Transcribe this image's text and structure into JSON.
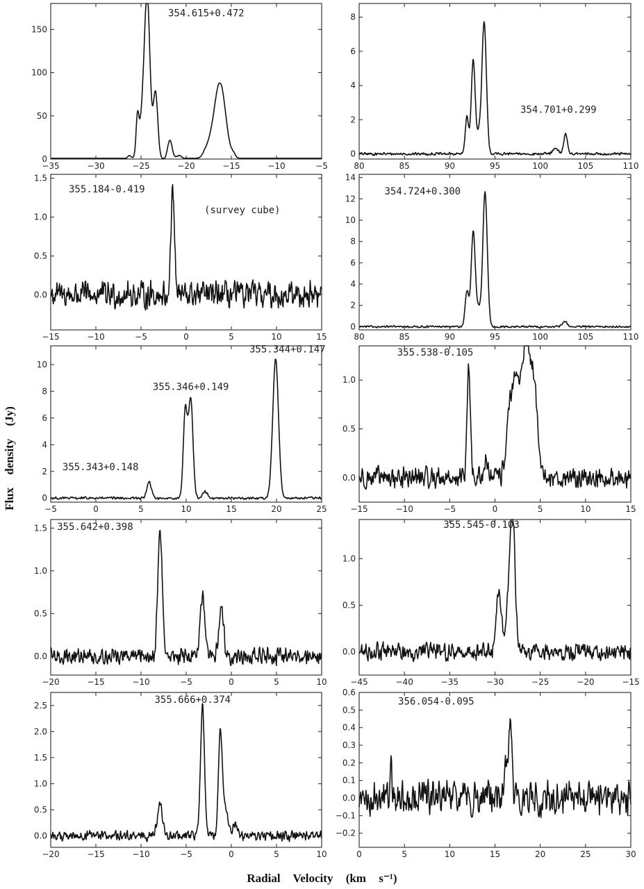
{
  "figure": {
    "xlabel": "Radial    Velocity    (km s⁻¹)",
    "ylabel": "Flux    density    (Jy)"
  },
  "chart_data": [
    {
      "type": "line",
      "xlim": [
        -35,
        -5
      ],
      "ylim": [
        0,
        180
      ],
      "xticks": [
        -35,
        -30,
        -25,
        -20,
        -15,
        -10,
        -5
      ],
      "yticks": [
        0,
        50,
        100,
        150
      ],
      "annotations": [
        {
          "text": "354.615+0.472",
          "x": -22,
          "y": 165
        }
      ],
      "peaks": [
        {
          "x": -26.3,
          "y": 4,
          "w": 0.2
        },
        {
          "x": -25.4,
          "y": 38,
          "w": 0.15
        },
        {
          "x": -24.8,
          "y": 50,
          "w": 0.4
        },
        {
          "x": -24.3,
          "y": 168,
          "w": 0.3
        },
        {
          "x": -23.4,
          "y": 77,
          "w": 0.25
        },
        {
          "x": -21.8,
          "y": 22,
          "w": 0.25
        },
        {
          "x": -20.8,
          "y": 4,
          "w": 0.3
        },
        {
          "x": -17.6,
          "y": 12,
          "w": 0.5
        },
        {
          "x": -16.5,
          "y": 63,
          "w": 0.55
        },
        {
          "x": -15.9,
          "y": 40,
          "w": 0.5
        },
        {
          "x": -14.8,
          "y": 5,
          "w": 0.3
        }
      ],
      "noise": 0.4
    },
    {
      "type": "line",
      "xlim": [
        80,
        110
      ],
      "ylim": [
        -0.3,
        8.8
      ],
      "xticks": [
        80,
        85,
        90,
        95,
        100,
        105,
        110
      ],
      "yticks": [
        0,
        2,
        4,
        6,
        8
      ],
      "annotations": [
        {
          "text": "354.701+0.299",
          "x": 97.8,
          "y": 2.4
        }
      ],
      "peaks": [
        {
          "x": 91.9,
          "y": 2.2,
          "w": 0.18
        },
        {
          "x": 92.6,
          "y": 5.5,
          "w": 0.22
        },
        {
          "x": 93.2,
          "y": 1.0,
          "w": 0.2
        },
        {
          "x": 93.8,
          "y": 7.7,
          "w": 0.25
        },
        {
          "x": 101.7,
          "y": 0.3,
          "w": 0.3
        },
        {
          "x": 102.8,
          "y": 1.2,
          "w": 0.2
        }
      ],
      "noise": 0.06
    },
    {
      "type": "line",
      "xlim": [
        -15,
        15
      ],
      "ylim": [
        -0.45,
        1.55
      ],
      "xticks": [
        -15,
        -10,
        -5,
        0,
        5,
        10,
        15
      ],
      "yticks": [
        0.0,
        0.5,
        1.0,
        1.5
      ],
      "annotations": [
        {
          "text": "355.184-0.419",
          "x": -13,
          "y": 1.32
        },
        {
          "text": "(survey cube)",
          "x": 2,
          "y": 1.05
        }
      ],
      "peaks": [
        {
          "x": -1.5,
          "y": 1.35,
          "w": 0.2
        }
      ],
      "noise": 0.13
    },
    {
      "type": "line",
      "xlim": [
        80,
        110
      ],
      "ylim": [
        -0.3,
        14.3
      ],
      "xticks": [
        80,
        85,
        90,
        95,
        100,
        105,
        110
      ],
      "yticks": [
        0,
        2,
        4,
        6,
        8,
        10,
        12,
        14
      ],
      "annotations": [
        {
          "text": "354.724+0.300",
          "x": 82.8,
          "y": 12.4
        }
      ],
      "peaks": [
        {
          "x": 91.9,
          "y": 3.3,
          "w": 0.2
        },
        {
          "x": 92.6,
          "y": 9.0,
          "w": 0.23
        },
        {
          "x": 93.2,
          "y": 1.5,
          "w": 0.2
        },
        {
          "x": 93.9,
          "y": 12.6,
          "w": 0.25
        },
        {
          "x": 102.7,
          "y": 0.5,
          "w": 0.25
        }
      ],
      "noise": 0.07
    },
    {
      "type": "line",
      "xlim": [
        -5,
        25
      ],
      "ylim": [
        -0.3,
        11.4
      ],
      "xticks": [
        -5,
        0,
        5,
        10,
        15,
        20,
        25
      ],
      "yticks": [
        0,
        2,
        4,
        6,
        8,
        10
      ],
      "annotations": [
        {
          "text": "355.344+0.147",
          "x": 17,
          "y": 10.9
        },
        {
          "text": "355.346+0.149",
          "x": 6.3,
          "y": 8.1
        },
        {
          "text": "355.343+0.148",
          "x": -3.7,
          "y": 2.1
        }
      ],
      "peaks": [
        {
          "x": 5.9,
          "y": 1.2,
          "w": 0.25
        },
        {
          "x": 9.9,
          "y": 6.5,
          "w": 0.22
        },
        {
          "x": 10.5,
          "y": 7.4,
          "w": 0.25
        },
        {
          "x": 12.1,
          "y": 0.5,
          "w": 0.25
        },
        {
          "x": 19.9,
          "y": 10.4,
          "w": 0.32
        }
      ],
      "noise": 0.07
    },
    {
      "type": "line",
      "xlim": [
        -15,
        15
      ],
      "ylim": [
        -0.25,
        1.35
      ],
      "xticks": [
        -15,
        -10,
        -5,
        0,
        5,
        10,
        15
      ],
      "yticks": [
        0.0,
        0.5,
        1.0
      ],
      "annotations": [
        {
          "text": "355.538-0.105",
          "x": -10.8,
          "y": 1.25
        }
      ],
      "peaks": [
        {
          "x": -2.9,
          "y": 1.1,
          "w": 0.18
        },
        {
          "x": -1.0,
          "y": 0.25,
          "w": 0.15
        },
        {
          "x": 1.6,
          "y": 0.7,
          "w": 0.35
        },
        {
          "x": 2.3,
          "y": 0.9,
          "w": 0.3
        },
        {
          "x": 3.0,
          "y": 1.0,
          "w": 0.3
        },
        {
          "x": 3.6,
          "y": 1.15,
          "w": 0.3
        },
        {
          "x": 4.3,
          "y": 1.0,
          "w": 0.35
        }
      ],
      "noise": 0.08
    },
    {
      "type": "line",
      "xlim": [
        -20,
        10
      ],
      "ylim": [
        -0.22,
        1.6
      ],
      "xticks": [
        -20,
        -15,
        -10,
        -5,
        0,
        5,
        10
      ],
      "yticks": [
        0.0,
        0.5,
        1.0,
        1.5
      ],
      "annotations": [
        {
          "text": "355.642+0.398",
          "x": -19.3,
          "y": 1.48
        }
      ],
      "peaks": [
        {
          "x": -7.9,
          "y": 1.45,
          "w": 0.25
        },
        {
          "x": -3.2,
          "y": 0.7,
          "w": 0.25
        },
        {
          "x": -1.1,
          "y": 0.58,
          "w": 0.25
        }
      ],
      "noise": 0.07
    },
    {
      "type": "line",
      "xlim": [
        -45,
        -15
      ],
      "ylim": [
        -0.25,
        1.42
      ],
      "xticks": [
        -45,
        -40,
        -35,
        -30,
        -25,
        -20,
        -15
      ],
      "yticks": [
        0.0,
        0.5,
        1.0
      ],
      "annotations": [
        {
          "text": "355.545-0.103",
          "x": -35.7,
          "y": 1.33
        }
      ],
      "peaks": [
        {
          "x": -29.6,
          "y": 0.65,
          "w": 0.3
        },
        {
          "x": -28.4,
          "y": 0.7,
          "w": 0.3
        },
        {
          "x": -28.0,
          "y": 1.2,
          "w": 0.25
        }
      ],
      "noise": 0.07
    },
    {
      "type": "line",
      "xlim": [
        -20,
        10
      ],
      "ylim": [
        -0.22,
        2.75
      ],
      "xticks": [
        -20,
        -15,
        -10,
        -5,
        0,
        5,
        10
      ],
      "yticks": [
        0.0,
        0.5,
        1.0,
        1.5,
        2.0,
        2.5
      ],
      "annotations": [
        {
          "text": "355.666+0.374",
          "x": -8.5,
          "y": 2.55
        }
      ],
      "peaks": [
        {
          "x": -7.9,
          "y": 0.58,
          "w": 0.28
        },
        {
          "x": -3.2,
          "y": 2.5,
          "w": 0.22
        },
        {
          "x": -1.2,
          "y": 2.0,
          "w": 0.22
        },
        {
          "x": -0.6,
          "y": 0.5,
          "w": 0.25
        },
        {
          "x": 0.4,
          "y": 0.25,
          "w": 0.25
        }
      ],
      "noise": 0.07
    },
    {
      "type": "line",
      "xlim": [
        0,
        30
      ],
      "ylim": [
        -0.28,
        0.6
      ],
      "xticks": [
        0,
        5,
        10,
        15,
        20,
        25,
        30
      ],
      "yticks": [
        -0.2,
        -0.1,
        0.0,
        0.1,
        0.2,
        0.3,
        0.4,
        0.5,
        0.6
      ],
      "annotations": [
        {
          "text": "356.054-0.095",
          "x": 4.3,
          "y": 0.53
        }
      ],
      "peaks": [
        {
          "x": 3.5,
          "y": 0.18,
          "w": 0.12
        },
        {
          "x": 16.2,
          "y": 0.15,
          "w": 0.2
        },
        {
          "x": 16.7,
          "y": 0.5,
          "w": 0.15
        }
      ],
      "noise": 0.07
    }
  ]
}
